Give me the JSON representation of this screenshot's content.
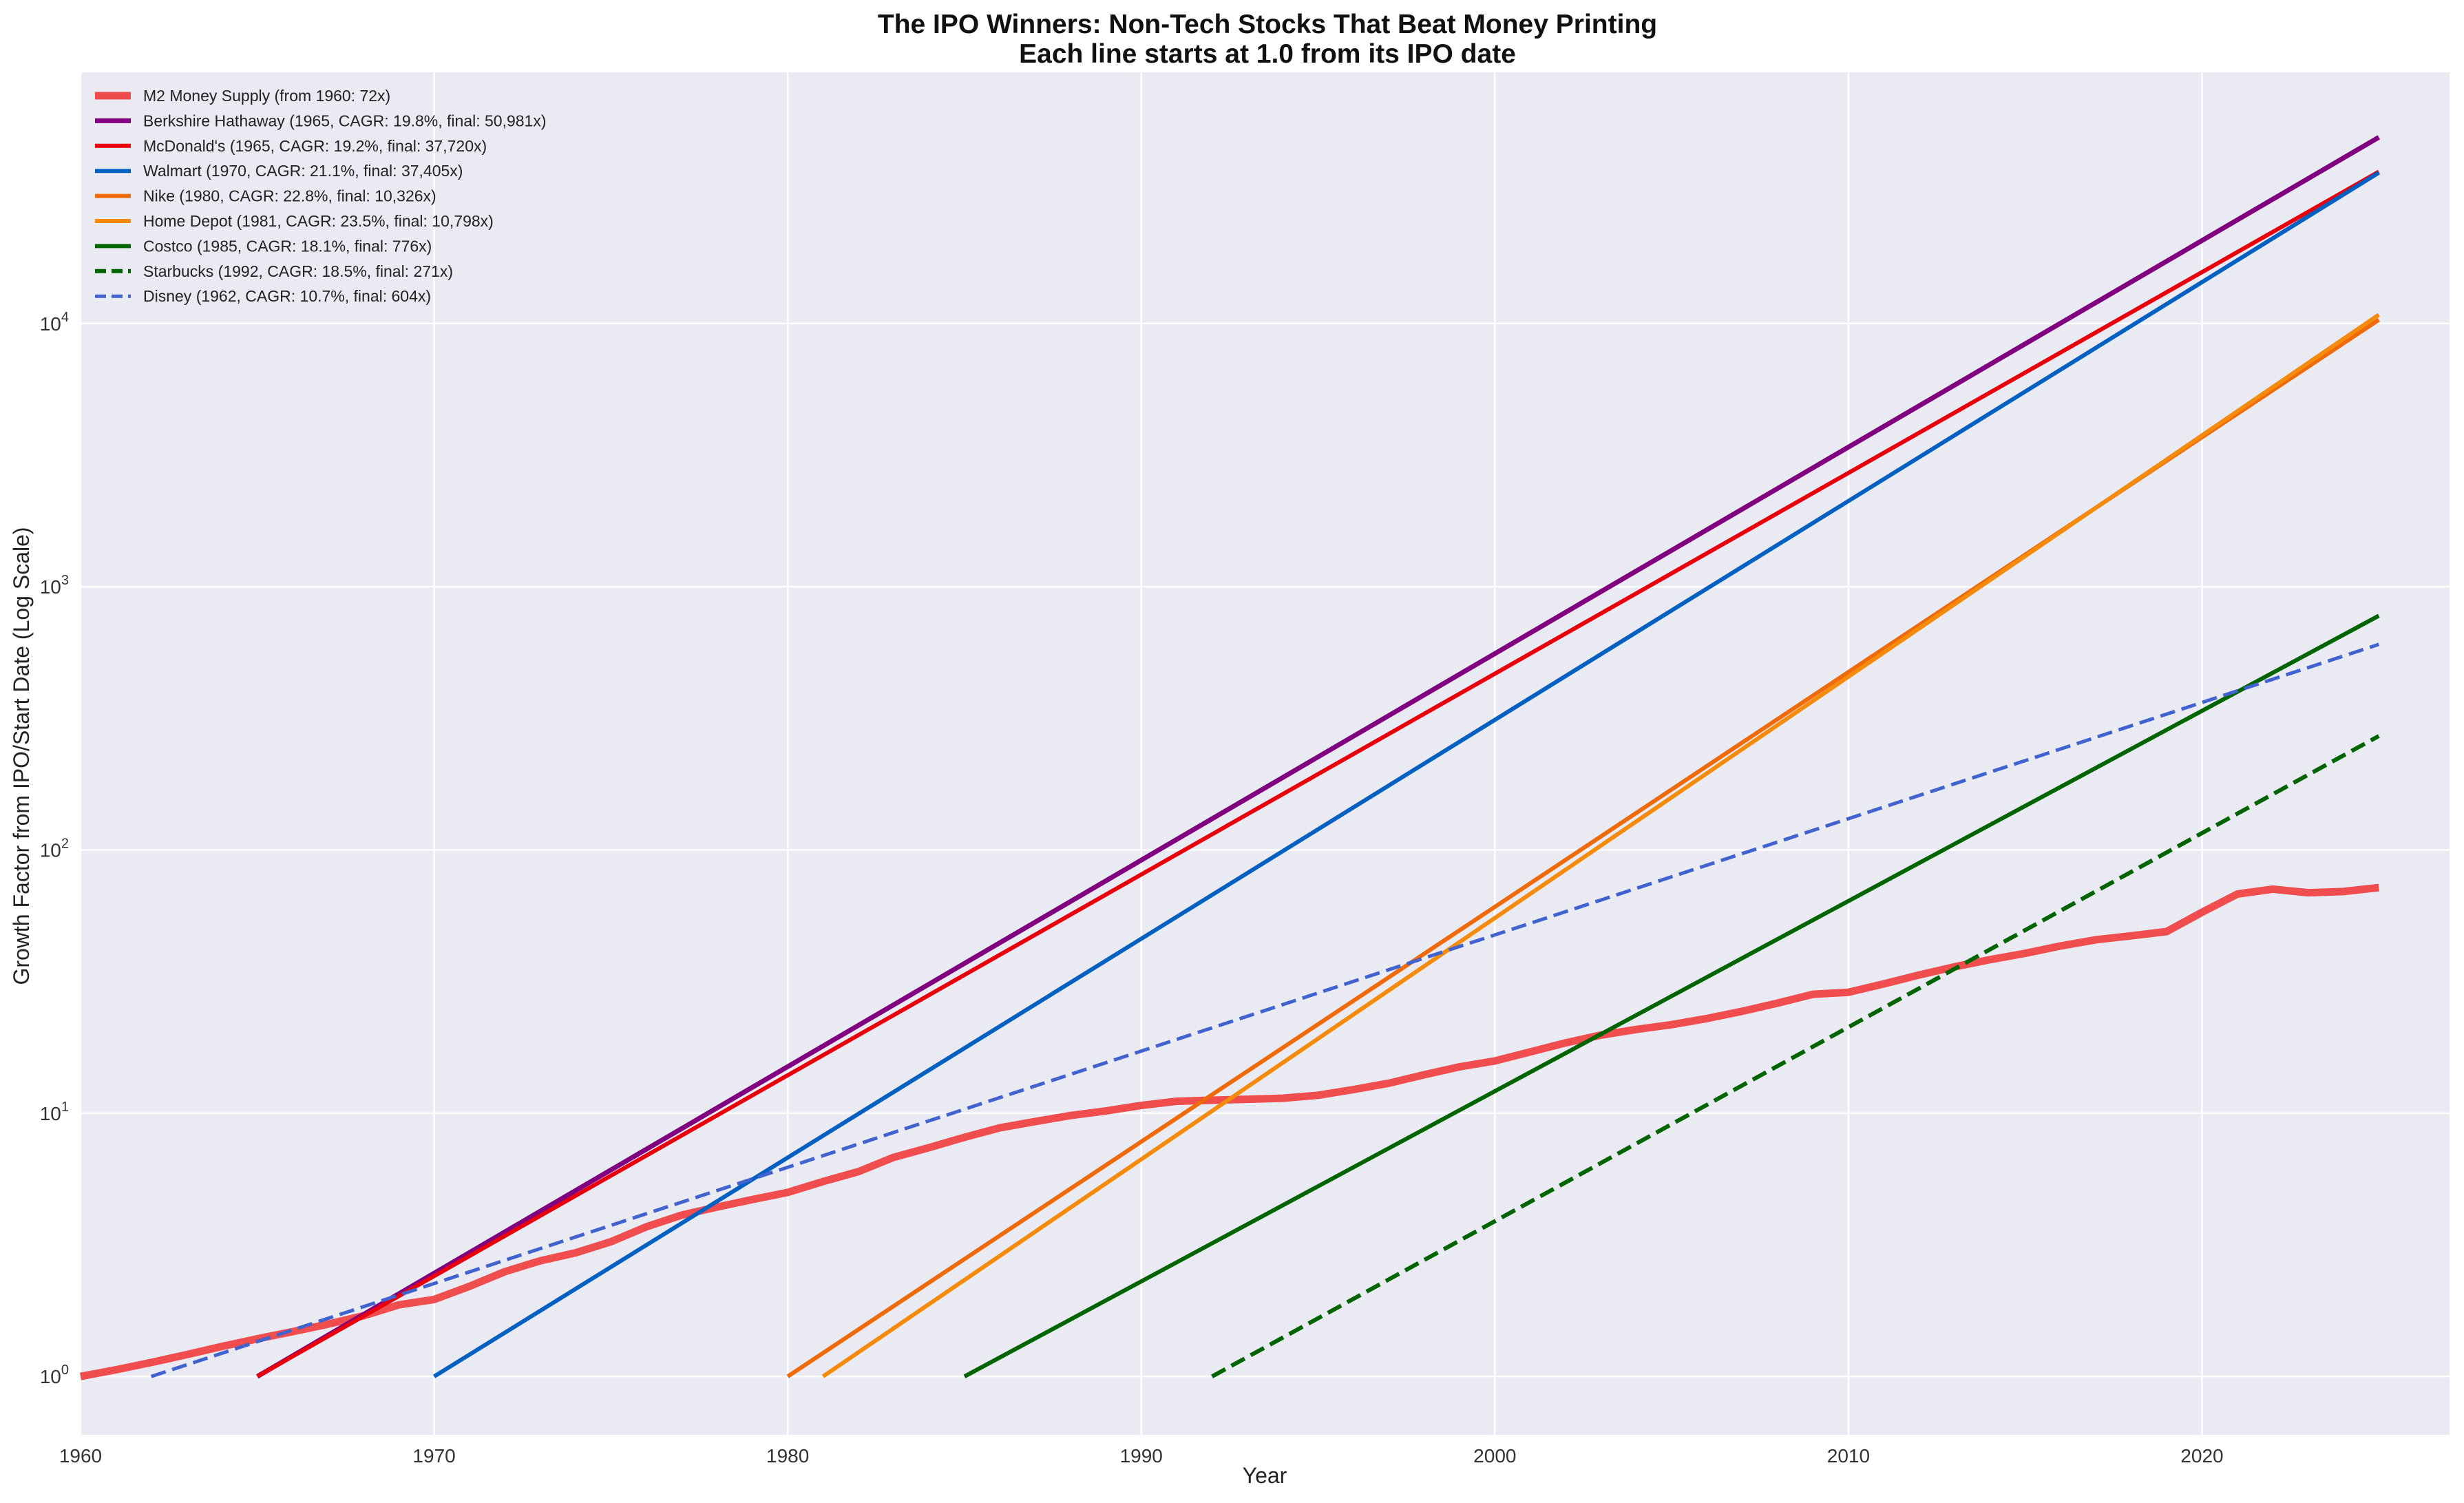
{
  "chart_data": {
    "type": "line",
    "title": "The IPO Winners: Non-Tech Stocks That Beat Money Printing",
    "subtitle": "Each line starts at 1.0 from its IPO date",
    "xlabel": "Year",
    "ylabel": "Growth Factor from IPO/Start Date (Log Scale)",
    "xlim": [
      1960,
      2027
    ],
    "ylim": [
      0.6,
      90000
    ],
    "yscale": "log",
    "grid": true,
    "legend_position": "top-left",
    "background_color": "#eaeaf2",
    "x_ticks": [
      1960,
      1970,
      1980,
      1990,
      2000,
      2010,
      2020
    ],
    "x_tick_labels": [
      "1960",
      "1970",
      "1980",
      "1990",
      "2000",
      "2010",
      "2020"
    ],
    "y_ticks": [
      1,
      10,
      100,
      1000,
      10000
    ],
    "y_tick_labels": [
      {
        "base": "10",
        "exp": "0"
      },
      {
        "base": "10",
        "exp": "1"
      },
      {
        "base": "10",
        "exp": "2"
      },
      {
        "base": "10",
        "exp": "3"
      },
      {
        "base": "10",
        "exp": "4"
      }
    ],
    "series": [
      {
        "name": "M2 Money Supply (from 1960: 72x)",
        "color": "#ef4444",
        "style": "solid",
        "width": 11,
        "opacity": 0.95,
        "x": [
          1960,
          1961,
          1962,
          1963,
          1964,
          1965,
          1966,
          1967,
          1968,
          1969,
          1970,
          1971,
          1972,
          1973,
          1974,
          1975,
          1976,
          1977,
          1978,
          1979,
          1980,
          1981,
          1982,
          1983,
          1984,
          1985,
          1986,
          1987,
          1988,
          1989,
          1990,
          1991,
          1992,
          1993,
          1994,
          1995,
          1996,
          1997,
          1998,
          1999,
          2000,
          2001,
          2002,
          2003,
          2004,
          2005,
          2006,
          2007,
          2008,
          2009,
          2010,
          2011,
          2012,
          2013,
          2014,
          2015,
          2016,
          2017,
          2018,
          2019,
          2020,
          2021,
          2022,
          2023,
          2024,
          2025
        ],
        "y": [
          1.0,
          1.06,
          1.13,
          1.21,
          1.3,
          1.39,
          1.48,
          1.58,
          1.7,
          1.87,
          1.96,
          2.2,
          2.5,
          2.75,
          2.95,
          3.25,
          3.7,
          4.1,
          4.4,
          4.7,
          5.0,
          5.5,
          6.0,
          6.8,
          7.4,
          8.1,
          8.8,
          9.3,
          9.8,
          10.2,
          10.7,
          11.1,
          11.2,
          11.3,
          11.4,
          11.7,
          12.3,
          13.0,
          14.0,
          15.0,
          15.8,
          17.1,
          18.5,
          19.8,
          20.8,
          21.7,
          22.9,
          24.4,
          26.2,
          28.3,
          28.8,
          31.0,
          33.5,
          36.0,
          38.3,
          40.5,
          43.2,
          45.6,
          47.2,
          49.0,
          58.0,
          68.0,
          71.0,
          68.8,
          69.5,
          72.0
        ]
      },
      {
        "name": "Berkshire Hathaway (1965, CAGR: 19.8%, final: 50,981x)",
        "color": "#800080",
        "style": "solid",
        "width": 7,
        "opacity": 1,
        "x": [
          1965,
          2025
        ],
        "y": [
          1,
          50981
        ]
      },
      {
        "name": "McDonald's (1965, CAGR: 19.2%, final: 37,720x)",
        "color": "#e8000b",
        "style": "solid",
        "width": 6,
        "opacity": 1,
        "x": [
          1965,
          2025
        ],
        "y": [
          1,
          37720
        ]
      },
      {
        "name": "Walmart (1970, CAGR: 21.1%, final: 37,405x)",
        "color": "#0461c1",
        "style": "solid",
        "width": 6,
        "opacity": 1,
        "x": [
          1970,
          2025
        ],
        "y": [
          1,
          37405
        ]
      },
      {
        "name": "Nike (1980, CAGR: 22.8%, final: 10,326x)",
        "color": "#ee6a0a",
        "style": "solid",
        "width": 6,
        "opacity": 1,
        "x": [
          1980,
          2025
        ],
        "y": [
          1,
          10326
        ]
      },
      {
        "name": "Home Depot (1981, CAGR: 23.5%, final: 10,798x)",
        "color": "#f58b0d",
        "style": "solid",
        "width": 6,
        "opacity": 1,
        "x": [
          1981,
          2025
        ],
        "y": [
          1,
          10798
        ]
      },
      {
        "name": "Costco (1985, CAGR: 18.1%, final: 776x)",
        "color": "#006400",
        "style": "solid",
        "width": 6,
        "opacity": 1,
        "x": [
          1985,
          2025
        ],
        "y": [
          1,
          776
        ]
      },
      {
        "name": "Starbucks (1992, CAGR: 18.5%, final: 271x)",
        "color": "#006400",
        "style": "dashed",
        "width": 6,
        "opacity": 1,
        "x": [
          1992,
          2025
        ],
        "y": [
          1,
          271
        ]
      },
      {
        "name": "Disney (1962, CAGR: 10.7%, final: 604x)",
        "color": "#4163cf",
        "style": "dashed",
        "width": 5,
        "opacity": 1,
        "x": [
          1962,
          2025
        ],
        "y": [
          1,
          604
        ]
      }
    ]
  }
}
